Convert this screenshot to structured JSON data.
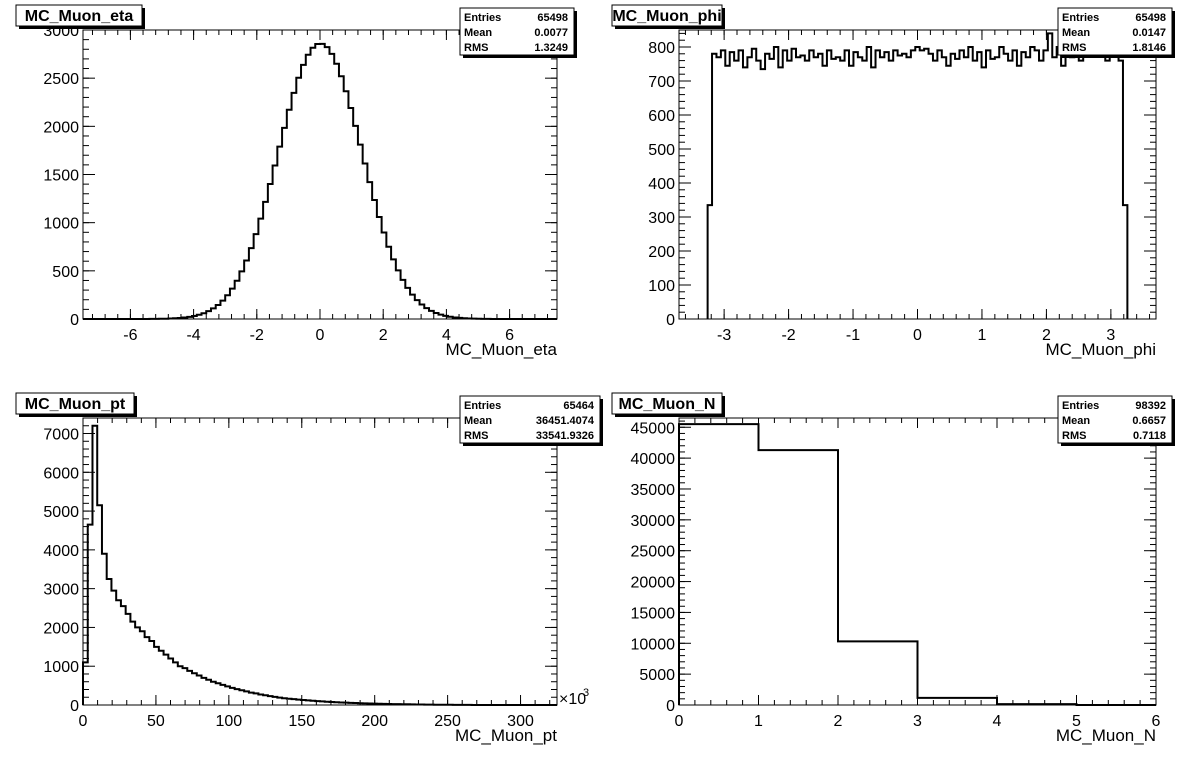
{
  "chart_data": [
    {
      "type": "histogram",
      "title": "MC_Muon_eta",
      "xlabel": "MC_Muon_eta",
      "xlim": [
        -7.5,
        7.5
      ],
      "ylim": [
        0,
        3000
      ],
      "xticks": [
        -6,
        -4,
        -2,
        0,
        2,
        4,
        6
      ],
      "yticks": [
        0,
        500,
        1000,
        1500,
        2000,
        2500,
        3000
      ],
      "xtick_labels": [
        "-6",
        "-4",
        "-2",
        "0",
        "2",
        "4",
        "6"
      ],
      "ytick_labels": [
        "0",
        "500",
        "1000",
        "1500",
        "2000",
        "2500",
        "3000"
      ],
      "stats": [
        {
          "label": "Entries",
          "value": "65498"
        },
        {
          "label": "Mean",
          "value": "0.0077"
        },
        {
          "label": "RMS",
          "value": "1.3249"
        }
      ],
      "bin_edges": [
        -7.5,
        7.5
      ],
      "gaussian": {
        "amplitude": 2860,
        "mean": 0.0077,
        "sigma": 1.3249,
        "nbins": 100
      }
    },
    {
      "type": "histogram",
      "title": "MC_Muon_phi",
      "xlabel": "MC_Muon_phi",
      "xlim": [
        -3.7,
        3.7
      ],
      "ylim": [
        0,
        850
      ],
      "xticks": [
        -3,
        -2,
        -1,
        0,
        1,
        2,
        3
      ],
      "yticks": [
        0,
        100,
        200,
        300,
        400,
        500,
        600,
        700,
        800
      ],
      "xtick_labels": [
        "-3",
        "-2",
        "-1",
        "0",
        "1",
        "2",
        "3"
      ],
      "ytick_labels": [
        "0",
        "100",
        "200",
        "300",
        "400",
        "500",
        "600",
        "700",
        "800"
      ],
      "stats": [
        {
          "label": "Entries",
          "value": "65498"
        },
        {
          "label": "Mean",
          "value": "0.0147"
        },
        {
          "label": "RMS",
          "value": "1.8146"
        }
      ],
      "bin_range": [
        -3.256,
        3.256
      ],
      "values": [
        335,
        780,
        770,
        790,
        745,
        785,
        760,
        790,
        740,
        770,
        795,
        760,
        735,
        780,
        765,
        800,
        740,
        790,
        760,
        795,
        770,
        775,
        760,
        790,
        770,
        780,
        745,
        790,
        765,
        770,
        760,
        790,
        745,
        785,
        770,
        760,
        800,
        740,
        790,
        770,
        785,
        760,
        790,
        775,
        780,
        770,
        790,
        800,
        790,
        795,
        780,
        760,
        790,
        770,
        745,
        780,
        765,
        790,
        770,
        800,
        760,
        785,
        740,
        790,
        765,
        770,
        800,
        780,
        760,
        790,
        745,
        785,
        770,
        800,
        790,
        760,
        790,
        840,
        770,
        800,
        745,
        790,
        770,
        795,
        760,
        820,
        790,
        780,
        800,
        790,
        760,
        800,
        790,
        760,
        335
      ]
    },
    {
      "type": "histogram",
      "title": "MC_Muon_pt",
      "xlabel": "MC_Muon_pt",
      "x_multiplier": "×10",
      "x_multiplier_exp": "3",
      "xlim": [
        0,
        325
      ],
      "ylim": [
        0,
        7400
      ],
      "xticks": [
        0,
        50,
        100,
        150,
        200,
        250,
        300
      ],
      "yticks": [
        0,
        1000,
        2000,
        3000,
        4000,
        5000,
        6000,
        7000
      ],
      "xtick_labels": [
        "0",
        "50",
        "100",
        "150",
        "200",
        "250",
        "300"
      ],
      "ytick_labels": [
        "0",
        "1000",
        "2000",
        "3000",
        "4000",
        "5000",
        "6000",
        "7000"
      ],
      "stats": [
        {
          "label": "Entries",
          "value": "65464"
        },
        {
          "label": "Mean",
          "value": "36451.4074"
        },
        {
          "label": "RMS",
          "value": "33541.9326"
        }
      ],
      "bin_width": 3.25,
      "values": [
        1100,
        4650,
        7200,
        5150,
        3900,
        3250,
        2950,
        2700,
        2550,
        2350,
        2150,
        2000,
        1900,
        1750,
        1650,
        1500,
        1400,
        1300,
        1200,
        1100,
        1000,
        950,
        880,
        820,
        760,
        700,
        650,
        600,
        560,
        520,
        480,
        440,
        410,
        380,
        350,
        320,
        300,
        270,
        250,
        230,
        210,
        190,
        175,
        160,
        150,
        140,
        130,
        120,
        110,
        100,
        92,
        85,
        78,
        72,
        66,
        60,
        55,
        50,
        46,
        42,
        38,
        35,
        32,
        29,
        26,
        24,
        22,
        20,
        18,
        16,
        14,
        12,
        10,
        9,
        8,
        7,
        6,
        5,
        4,
        3,
        2,
        2,
        1,
        1,
        1,
        1,
        0,
        0,
        0,
        0,
        0,
        0,
        0,
        0,
        0,
        0,
        0,
        0,
        0,
        0
      ]
    },
    {
      "type": "histogram",
      "title": "MC_Muon_N",
      "xlabel": "MC_Muon_N",
      "xlim": [
        0,
        6
      ],
      "ylim": [
        0,
        46500
      ],
      "xticks": [
        0,
        1,
        2,
        3,
        4,
        5,
        6
      ],
      "yticks": [
        0,
        5000,
        10000,
        15000,
        20000,
        25000,
        30000,
        35000,
        40000,
        45000
      ],
      "xtick_labels": [
        "0",
        "1",
        "2",
        "3",
        "4",
        "5",
        "6"
      ],
      "ytick_labels": [
        "0",
        "5000",
        "10000",
        "15000",
        "20000",
        "25000",
        "30000",
        "35000",
        "40000",
        "45000"
      ],
      "stats": [
        {
          "label": "Entries",
          "value": "98392"
        },
        {
          "label": "Mean",
          "value": "0.6657"
        },
        {
          "label": "RMS",
          "value": "0.7118"
        }
      ],
      "bin_edges": [
        0,
        1,
        2,
        3,
        4,
        5,
        6
      ],
      "values": [
        45500,
        41300,
        10300,
        1150,
        140,
        0
      ]
    }
  ]
}
